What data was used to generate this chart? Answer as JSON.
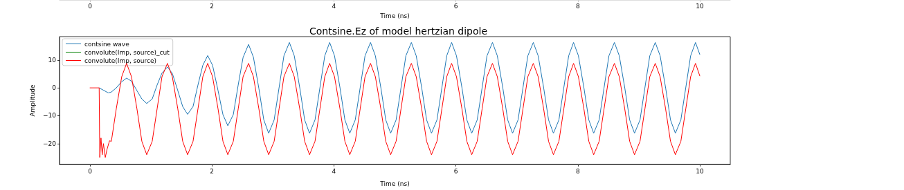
{
  "chart_data": {
    "type": "line",
    "x2label": "Time (ns)",
    "x2lim": [
      -0.5,
      10.5
    ],
    "x2ticks": [
      0,
      2,
      4,
      6,
      8,
      10
    ],
    "title": "Contsine.Ez of model hertzian dipole",
    "xlabel": "Time (ns)",
    "ylabel": "Amplitude",
    "xlim": [
      -0.5,
      10.5
    ],
    "ylim": [
      -27.5,
      18.4
    ],
    "xticks": [
      0,
      2,
      4,
      6,
      8,
      10
    ],
    "yticks": [
      {
        "value": -20,
        "label": "−20"
      },
      {
        "value": -10,
        "label": "−10"
      },
      0,
      10
    ],
    "legend": "top left",
    "marker": "none",
    "line_style": "solid",
    "series": [
      {
        "name": "contsine wave",
        "color": "#1f77b4",
        "x": [
          0.15,
          0.3,
          0.35,
          0.43,
          0.52,
          0.6,
          0.68,
          0.77,
          0.85,
          0.93,
          1.02,
          1.1,
          1.18,
          1.27,
          1.35,
          1.44,
          1.52,
          1.6,
          1.69,
          1.77,
          1.85,
          1.93,
          2.01,
          2.1,
          2.18,
          2.26,
          2.35,
          2.43,
          2.51,
          2.6,
          2.68,
          2.77,
          2.85,
          2.93,
          3.02,
          3.1,
          3.18,
          3.27,
          3.35,
          3.44,
          3.52,
          3.6,
          3.69,
          3.77,
          3.85,
          3.93,
          4.01,
          4.1,
          4.18,
          4.26,
          4.35,
          4.43,
          4.51,
          4.6,
          4.68,
          4.77,
          4.85,
          4.93,
          5.02,
          5.1,
          5.18,
          5.27,
          5.35,
          5.44,
          5.52,
          5.6,
          5.69,
          5.77,
          5.85,
          5.93,
          6.01,
          6.1,
          6.18,
          6.26,
          6.35,
          6.43,
          6.51,
          6.6,
          6.68,
          6.77,
          6.85,
          6.93,
          7.02,
          7.1,
          7.18,
          7.27,
          7.35,
          7.44,
          7.52,
          7.6,
          7.69,
          7.77,
          7.85,
          7.93,
          8.01,
          8.1,
          8.18,
          8.26,
          8.35,
          8.43,
          8.51,
          8.6,
          8.68,
          8.77,
          8.85,
          8.93,
          9.02,
          9.1,
          9.18,
          9.27,
          9.35,
          9.44,
          9.52,
          9.6,
          9.69,
          9.77,
          9.85,
          9.93,
          10
        ],
        "values": [
          0,
          -1.8,
          -1.5,
          0,
          2.2,
          3.5,
          2.4,
          -1,
          -4,
          -5.6,
          -4,
          1,
          5.3,
          7.5,
          5.2,
          -1,
          -6.7,
          -9.5,
          -6.7,
          1,
          8.1,
          11.6,
          8.1,
          -1,
          -9.6,
          -13.6,
          -9.6,
          1,
          10.9,
          15.6,
          11,
          -0.3,
          -11.5,
          -16.3,
          -11.5,
          0,
          11.5,
          16.3,
          11.5,
          0,
          -11.5,
          -16.3,
          -11.5,
          0,
          11.5,
          16.3,
          11.5,
          0,
          -11.5,
          -16.3,
          -11.5,
          0,
          11.5,
          16.3,
          11.5,
          0,
          -11.5,
          -16.3,
          -11.5,
          0,
          11.5,
          16.3,
          11.5,
          0,
          -11.5,
          -16.3,
          -11.5,
          0,
          11.5,
          16.3,
          11.5,
          0,
          -11.5,
          -16.3,
          -11.5,
          0,
          11.5,
          16.3,
          11.5,
          0,
          -11.5,
          -16.3,
          -11.5,
          0,
          11.5,
          16.3,
          11.5,
          0,
          -11.5,
          -16.3,
          -11.5,
          0,
          11.5,
          16.3,
          11.5,
          0,
          -11.5,
          -16.3,
          -11.5,
          0,
          11.5,
          16.3,
          11.5,
          0,
          -11.5,
          -16.3,
          -11.5,
          0,
          11.5,
          16.3,
          11.5,
          0,
          -11.5,
          -16.3,
          -11.5,
          0,
          11.5,
          16.3,
          12
        ]
      },
      {
        "name": "convolute(Imp, source)_cut",
        "color": "#008000"
      },
      {
        "name": "convolute(Imp, source)",
        "color": "#ff0000",
        "x": [
          0,
          0.15,
          0.16,
          0.18,
          0.2,
          0.22,
          0.25,
          0.28,
          0.32,
          0.35,
          0.43,
          0.52,
          0.6,
          0.68,
          0.77,
          0.85,
          0.93,
          1.02,
          1.1,
          1.18,
          1.27,
          1.35,
          1.44,
          1.52,
          1.6,
          1.69,
          1.77,
          1.85,
          1.93,
          2.01,
          2.1,
          2.18,
          2.26,
          2.35,
          2.43,
          2.51,
          2.6,
          2.68,
          2.77,
          2.85,
          2.93,
          3.02,
          3.1,
          3.18,
          3.27,
          3.35,
          3.44,
          3.52,
          3.6,
          3.69,
          3.77,
          3.85,
          3.93,
          4.01,
          4.1,
          4.18,
          4.26,
          4.35,
          4.43,
          4.51,
          4.6,
          4.68,
          4.77,
          4.85,
          4.93,
          5.02,
          5.1,
          5.18,
          5.27,
          5.35,
          5.44,
          5.52,
          5.6,
          5.69,
          5.77,
          5.85,
          5.93,
          6.01,
          6.1,
          6.18,
          6.26,
          6.35,
          6.43,
          6.51,
          6.6,
          6.68,
          6.77,
          6.85,
          6.93,
          7.02,
          7.1,
          7.18,
          7.27,
          7.35,
          7.44,
          7.52,
          7.6,
          7.69,
          7.77,
          7.85,
          7.93,
          8.01,
          8.1,
          8.18,
          8.26,
          8.35,
          8.43,
          8.51,
          8.6,
          8.68,
          8.77,
          8.85,
          8.93,
          9.02,
          9.1,
          9.18,
          9.27,
          9.35,
          9.44,
          9.52,
          9.6,
          9.69,
          9.77,
          9.85,
          9.93,
          10
        ],
        "values": [
          0,
          0,
          -25,
          -18,
          -24,
          -20,
          -25,
          -22,
          -19,
          -19.2,
          -7.6,
          4,
          8.8,
          4,
          -7.6,
          -19.2,
          -24,
          -19.2,
          -7.6,
          4,
          8.8,
          4,
          -7.6,
          -19.2,
          -24,
          -19.2,
          -7.6,
          4,
          8.8,
          4,
          -7.6,
          -19.2,
          -24,
          -19.2,
          -7.6,
          4,
          8.8,
          4,
          -7.6,
          -19.2,
          -24,
          -19.2,
          -7.6,
          4,
          8.8,
          4,
          -7.6,
          -19.2,
          -24,
          -19.2,
          -7.6,
          4,
          8.8,
          4,
          -7.6,
          -19.2,
          -24,
          -19.2,
          -7.6,
          4,
          8.8,
          4,
          -7.6,
          -19.2,
          -24,
          -19.2,
          -7.6,
          4,
          8.8,
          4,
          -7.6,
          -19.2,
          -24,
          -19.2,
          -7.6,
          4,
          8.8,
          4,
          -7.6,
          -19.2,
          -24,
          -19.2,
          -7.6,
          4,
          8.8,
          4,
          -7.6,
          -19.2,
          -24,
          -19.2,
          -7.6,
          4,
          8.8,
          4,
          -7.6,
          -19.2,
          -24,
          -19.2,
          -7.6,
          4,
          8.8,
          4,
          -7.6,
          -19.2,
          -24,
          -19.2,
          -7.6,
          4,
          8.8,
          4,
          -7.6,
          -19.2,
          -24,
          -19.2,
          -7.6,
          4,
          8.8,
          4,
          -7.6,
          -19.2,
          -24,
          -19.2,
          -7.6,
          4,
          8.8,
          4.3
        ]
      }
    ]
  }
}
